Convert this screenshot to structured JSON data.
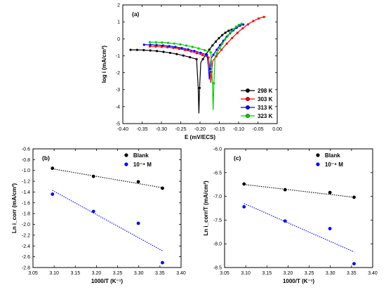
{
  "chart_data": [
    {
      "panel": "(a)",
      "type": "line",
      "xlabel": "E (mV/ECS)",
      "ylabel": "log i (mA/cm²)",
      "xlim": [
        -0.4,
        0.0
      ],
      "ylim": [
        -5,
        2
      ],
      "xticks": [
        -0.4,
        -0.35,
        -0.3,
        -0.25,
        -0.2,
        -0.15,
        -0.1,
        -0.05,
        0.0
      ],
      "xtick_labels": [
        "-0.40",
        "-0.35",
        "-0.30",
        "-0.25",
        "-0.20",
        "-0.15",
        "-0.10",
        "-0.05",
        "0.00"
      ],
      "yticks": [
        -5,
        -4,
        -3,
        -2,
        -1,
        0,
        1,
        2
      ],
      "ytick_labels": [
        "-5",
        "-4",
        "-3",
        "-2",
        "-1",
        "0",
        "1",
        "2"
      ],
      "legend_position": "bottom-right",
      "series": [
        {
          "name": "298 K",
          "color": "#000000",
          "ecorr": -0.203,
          "cathodic_start": [
            -0.38,
            -0.65
          ],
          "cathodic_near": -1.2,
          "anodic_near": -1.4,
          "anodic_end": [
            -0.115,
            0.55
          ],
          "dip": -4.4
        },
        {
          "name": "303 K",
          "color": "#ff0000",
          "ecorr": -0.172,
          "cathodic_start": [
            -0.33,
            -0.45
          ],
          "cathodic_near": -1.1,
          "anodic_near": -1.3,
          "anodic_end": [
            -0.03,
            1.3
          ],
          "dip": -2.6
        },
        {
          "name": "313 K",
          "color": "#0000ff",
          "ecorr": -0.176,
          "cathodic_start": [
            -0.345,
            -0.35
          ],
          "cathodic_near": -0.95,
          "anodic_near": -1.15,
          "anodic_end": [
            -0.085,
            0.85
          ],
          "dip": -2.4
        },
        {
          "name": "323 K",
          "color": "#00cc00",
          "ecorr": -0.166,
          "cathodic_start": [
            -0.33,
            -0.2
          ],
          "cathodic_near": -0.8,
          "anodic_near": -1.05,
          "anodic_end": [
            -0.09,
            0.9
          ],
          "dip": -4.2
        }
      ]
    },
    {
      "panel": "(b)",
      "type": "scatter",
      "xlabel": "1000/T (K⁻¹)",
      "ylabel": "Ln i_corr (mA/cm²)",
      "xlim": [
        3.05,
        3.4
      ],
      "ylim": [
        -2.8,
        -0.6
      ],
      "xticks": [
        3.05,
        3.1,
        3.15,
        3.2,
        3.25,
        3.3,
        3.35,
        3.4
      ],
      "xtick_labels": [
        "3.05",
        "3.10",
        "3.15",
        "3.20",
        "3.25",
        "3.30",
        "3.35",
        "3.40"
      ],
      "yticks": [
        -0.6,
        -0.8,
        -1.0,
        -1.2,
        -1.4,
        -1.6,
        -1.8,
        -2.0,
        -2.2,
        -2.4,
        -2.6,
        -2.8
      ],
      "ytick_labels": [
        "-0.6",
        "-0.8",
        "-1.0",
        "-1.2",
        "-1.4",
        "-1.6",
        "-1.8",
        "-2.0",
        "-2.2",
        "-2.4",
        "-2.6",
        "-2.8"
      ],
      "legend_position": "top-right",
      "series": [
        {
          "name": "Blank",
          "color": "#000000",
          "x": [
            3.096,
            3.193,
            3.299,
            3.356
          ],
          "y": [
            -0.96,
            -1.11,
            -1.21,
            -1.33
          ],
          "fit": [
            [
              3.096,
              -0.97
            ],
            [
              3.356,
              -1.32
            ]
          ]
        },
        {
          "name": "10⁻⁴ M",
          "color": "#0000ff",
          "x": [
            3.096,
            3.193,
            3.299,
            3.356
          ],
          "y": [
            -1.44,
            -1.76,
            -1.98,
            -2.71
          ],
          "fit": [
            [
              3.096,
              -1.37
            ],
            [
              3.356,
              -2.49
            ]
          ]
        }
      ]
    },
    {
      "panel": "(c)",
      "type": "scatter",
      "xlabel": "1000/T (K⁻¹)",
      "ylabel": "Ln i_corr/T (mA/cm²)",
      "xlim": [
        3.05,
        3.4
      ],
      "ylim": [
        -8.5,
        -6.0
      ],
      "xticks": [
        3.05,
        3.1,
        3.15,
        3.2,
        3.25,
        3.3,
        3.35,
        3.4
      ],
      "xtick_labels": [
        "3.05",
        "3.10",
        "3.15",
        "3.20",
        "3.25",
        "3.30",
        "3.35",
        "3.40"
      ],
      "yticks": [
        -6.0,
        -6.5,
        -7.0,
        -7.5,
        -8.0,
        -8.5
      ],
      "ytick_labels": [
        "-6.0",
        "-6.5",
        "-7.0",
        "-7.5",
        "-8.0",
        "-8.5"
      ],
      "legend_position": "top-right",
      "series": [
        {
          "name": "Blank",
          "color": "#000000",
          "x": [
            3.096,
            3.193,
            3.299,
            3.356
          ],
          "y": [
            -6.74,
            -6.86,
            -6.92,
            -7.02
          ],
          "fit": [
            [
              3.096,
              -6.75
            ],
            [
              3.356,
              -7.02
            ]
          ]
        },
        {
          "name": "10⁻⁴ M",
          "color": "#0000ff",
          "x": [
            3.096,
            3.193,
            3.299,
            3.356
          ],
          "y": [
            -7.22,
            -7.52,
            -7.68,
            -8.42
          ],
          "fit": [
            [
              3.096,
              -7.15
            ],
            [
              3.356,
              -8.17
            ]
          ]
        }
      ]
    }
  ]
}
